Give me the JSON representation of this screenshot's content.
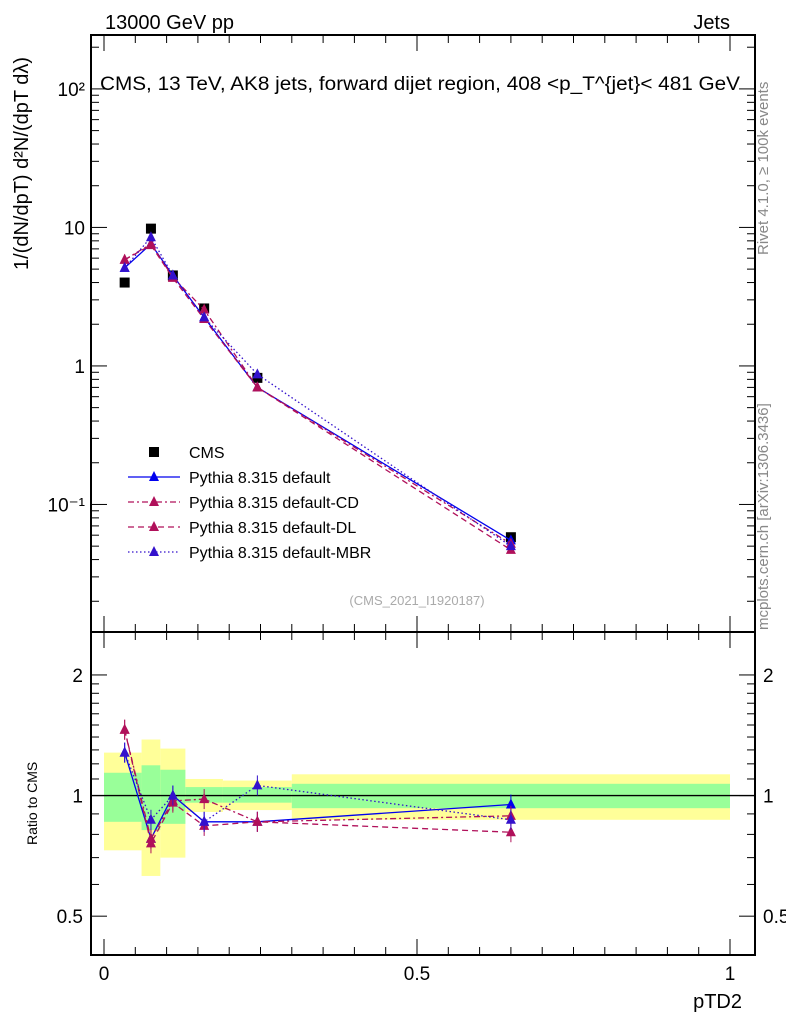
{
  "header": {
    "left": "13000 GeV pp",
    "right": "Jets"
  },
  "side": {
    "rivet": "Rivet 4.1.0, ≥ 100k events",
    "mcplots": "mcplots.cern.ch [arXiv:1306.3436]"
  },
  "watermark": "(CMS_2021_I1920187)",
  "colors": {
    "cms": "#000000",
    "default": "#0000ee",
    "cd": "#b0105a",
    "dl": "#b0105a",
    "mbr": "#3311cc",
    "band_stat": "#99ff99",
    "band_tot": "#ffff99"
  },
  "chart_data": [
    {
      "type": "line",
      "title": "CMS, 13 TeV, AK8 jets, forward dijet region, 408 <p_T^{jet}< 481 GeV",
      "ylabel": "1/(dN/dpT) d²N/(dpT dλ)",
      "yscale": "log",
      "ylim": [
        0.012,
        245
      ],
      "yticks": [
        {
          "v": 0.1,
          "label": "10⁻¹"
        },
        {
          "v": 1,
          "label": "1"
        },
        {
          "v": 10,
          "label": "10"
        },
        {
          "v": 100,
          "label": "10²"
        }
      ],
      "x": [
        0.033,
        0.075,
        0.11,
        0.16,
        0.245,
        0.65
      ],
      "series": [
        {
          "key": "cms",
          "name": "CMS",
          "values": [
            4.0,
            9.8,
            4.5,
            2.6,
            0.82,
            0.058
          ]
        },
        {
          "key": "default",
          "name": "Pythia 8.315 default",
          "values": [
            5.1,
            7.6,
            4.5,
            2.24,
            0.7,
            0.055
          ]
        },
        {
          "key": "cd",
          "name": "Pythia 8.315 default-CD",
          "values": [
            5.84,
            7.6,
            4.37,
            2.55,
            0.7,
            0.052
          ]
        },
        {
          "key": "dl",
          "name": "Pythia 8.315 default-DL",
          "values": [
            5.84,
            7.45,
            4.32,
            2.18,
            0.7,
            0.047
          ]
        },
        {
          "key": "mbr",
          "name": "Pythia 8.315 default-MBR",
          "values": [
            5.1,
            8.5,
            4.5,
            2.24,
            0.87,
            0.05
          ]
        }
      ],
      "legend": "middle-left"
    },
    {
      "type": "line",
      "ylabel": "Ratio to CMS",
      "xlabel": "pTD2",
      "yscale": "log",
      "ylim": [
        0.4,
        2.56
      ],
      "xlim": [
        -0.02,
        1.04
      ],
      "xticks": [
        {
          "v": 0,
          "label": "0"
        },
        {
          "v": 0.5,
          "label": "0.5"
        },
        {
          "v": 1,
          "label": "1"
        }
      ],
      "yticks": [
        {
          "v": 0.5,
          "label": "0.5"
        },
        {
          "v": 1,
          "label": "1"
        },
        {
          "v": 2,
          "label": "2"
        }
      ],
      "bin_edges": [
        0,
        0.06,
        0.09,
        0.13,
        0.19,
        0.3,
        1.0
      ],
      "band_stat": [
        [
          0.86,
          1.14
        ],
        [
          0.82,
          1.19
        ],
        [
          0.85,
          1.16
        ],
        [
          0.96,
          1.05
        ],
        [
          0.96,
          1.05
        ],
        [
          0.93,
          1.07
        ]
      ],
      "band_total": [
        [
          0.73,
          1.28
        ],
        [
          0.63,
          1.38
        ],
        [
          0.7,
          1.31
        ],
        [
          0.91,
          1.1
        ],
        [
          0.92,
          1.09
        ],
        [
          0.87,
          1.13
        ]
      ],
      "x": [
        0.033,
        0.075,
        0.11,
        0.16,
        0.245,
        0.65
      ],
      "series": [
        {
          "key": "default",
          "values": [
            1.28,
            0.78,
            1.0,
            0.86,
            0.86,
            0.95
          ]
        },
        {
          "key": "cd",
          "values": [
            1.46,
            0.78,
            0.97,
            0.98,
            0.86,
            0.89
          ]
        },
        {
          "key": "dl",
          "values": [
            1.46,
            0.76,
            0.96,
            0.84,
            0.86,
            0.81
          ]
        },
        {
          "key": "mbr",
          "values": [
            1.28,
            0.87,
            1.0,
            0.86,
            1.06,
            0.87
          ]
        }
      ]
    }
  ]
}
